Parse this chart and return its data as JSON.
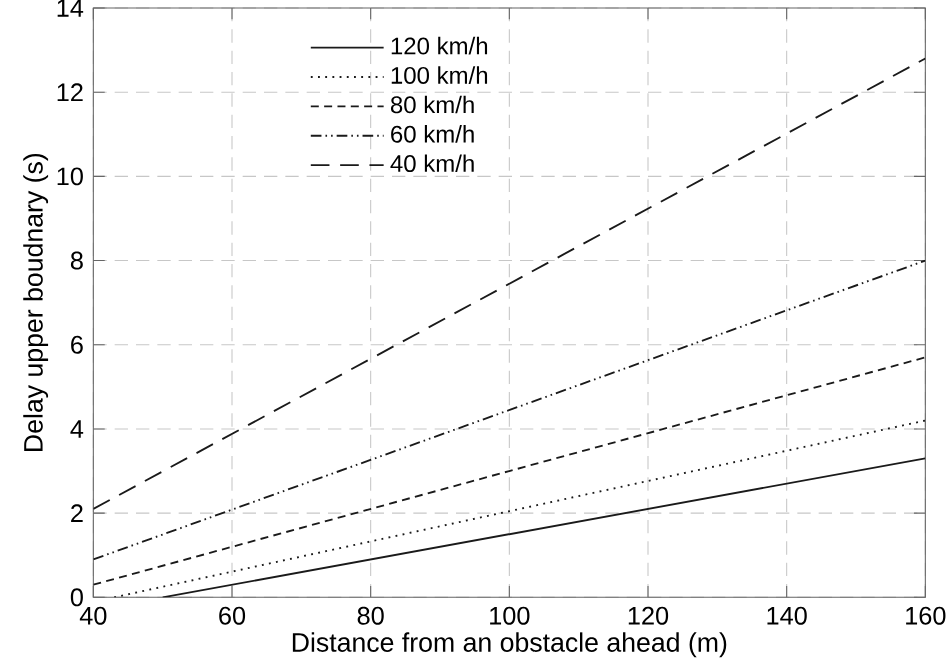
{
  "chart_data": {
    "type": "line",
    "xlabel": "Distance from an obstacle ahead (m)",
    "ylabel": "Delay upper boudnary (s)",
    "xlim": [
      40,
      160
    ],
    "ylim": [
      0,
      14
    ],
    "xticks": [
      40,
      60,
      80,
      100,
      120,
      140,
      160
    ],
    "yticks": [
      0,
      2,
      4,
      6,
      8,
      10,
      12,
      14
    ],
    "grid": true,
    "legend": "top left",
    "marker": "none",
    "series": [
      {
        "name": "120 km/h",
        "color": "#1a1a1a",
        "line_style": "solid",
        "x": [
          50,
          160
        ],
        "values": [
          0,
          3.3
        ]
      },
      {
        "name": "100 km/h",
        "color": "#1a1a1a",
        "line_style": "dotted",
        "x": [
          43,
          160
        ],
        "values": [
          0,
          4.2
        ]
      },
      {
        "name": "80 km/h",
        "color": "#1a1a1a",
        "line_style": "dashed",
        "x": [
          40,
          160
        ],
        "values": [
          0.3,
          5.7
        ]
      },
      {
        "name": "60 km/h",
        "color": "#1a1a1a",
        "line_style": "dashdotdotted",
        "x": [
          40,
          160
        ],
        "values": [
          0.9,
          8.0
        ]
      },
      {
        "name": "40 km/h",
        "color": "#1a1a1a",
        "line_style": "longdashed",
        "x": [
          40,
          160
        ],
        "values": [
          2.1,
          12.8
        ]
      }
    ]
  }
}
